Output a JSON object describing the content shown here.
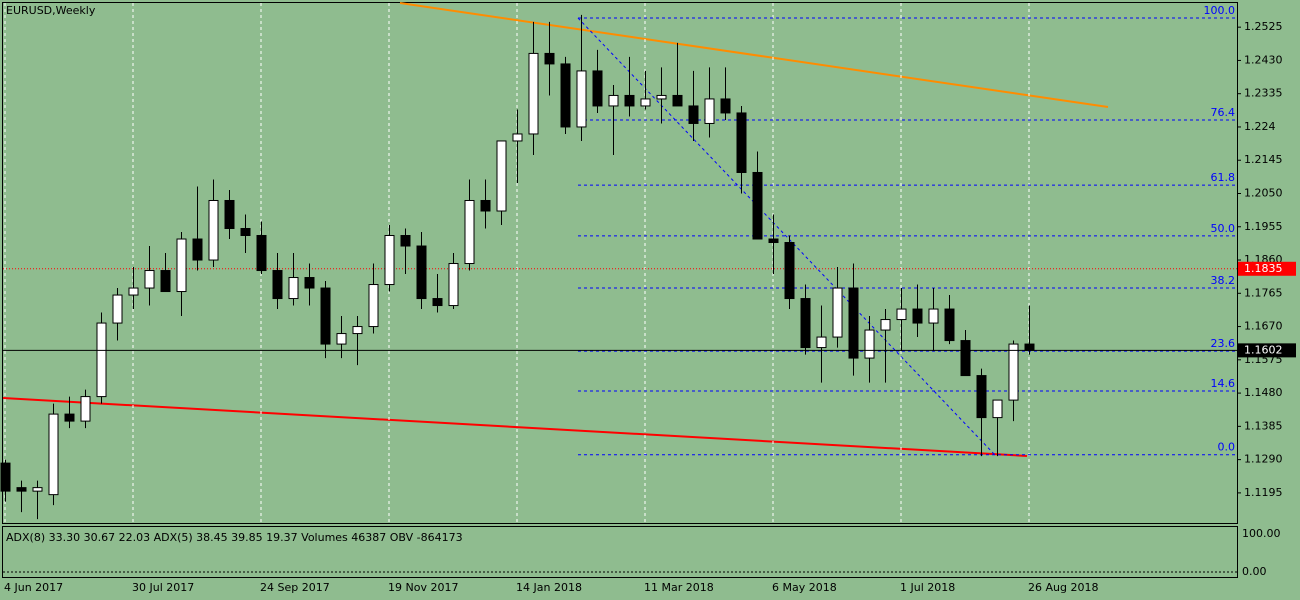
{
  "chart_data": {
    "type": "candlestick",
    "title": "EURUSD,Weekly",
    "ylim": [
      1.1109,
      1.2594
    ],
    "yticks": [
      1.2525,
      {
        "value": 1.243,
        "label": "1.2430"
      },
      1.2335,
      1.224,
      1.2145,
      {
        "value": 1.205,
        "label": "1.2050"
      },
      1.1955,
      {
        "value": 1.186,
        "label": "1.1860"
      },
      1.1765,
      {
        "value": 1.167,
        "label": "1.1670"
      },
      1.1575,
      {
        "value": 1.148,
        "label": "1.1480"
      },
      1.1385,
      {
        "value": 1.129,
        "label": "1.1290"
      },
      1.1195
    ],
    "categories": [
      "4 Jun 2017",
      null,
      null,
      null,
      null,
      null,
      null,
      null,
      "30 Jul 2017",
      null,
      null,
      null,
      null,
      null,
      null,
      null,
      "24 Sep 2017",
      null,
      null,
      null,
      null,
      null,
      null,
      null,
      "19 Nov 2017",
      null,
      null,
      null,
      null,
      null,
      null,
      null,
      "14 Jan 2018",
      null,
      null,
      null,
      null,
      null,
      null,
      null,
      "11 Mar 2018",
      null,
      null,
      null,
      null,
      null,
      null,
      null,
      "6 May 2018",
      null,
      null,
      null,
      null,
      null,
      null,
      null,
      "1 Jul 2018",
      null,
      null,
      null,
      null,
      null,
      null,
      null,
      "26 Aug 2018"
    ],
    "ohlc": [
      [
        1.128,
        1.129,
        1.117,
        1.12
      ],
      [
        1.121,
        1.123,
        1.114,
        1.12
      ],
      [
        1.12,
        1.123,
        1.112,
        1.121
      ],
      [
        1.119,
        1.145,
        1.116,
        1.142
      ],
      [
        1.142,
        1.147,
        1.138,
        1.14
      ],
      [
        1.14,
        1.149,
        1.138,
        1.147
      ],
      [
        1.147,
        1.171,
        1.145,
        1.168
      ],
      [
        1.168,
        1.178,
        1.163,
        1.176
      ],
      [
        1.176,
        1.184,
        1.172,
        1.178
      ],
      [
        1.178,
        1.19,
        1.173,
        1.183
      ],
      [
        1.183,
        1.188,
        1.177,
        1.177
      ],
      [
        1.177,
        1.194,
        1.17,
        1.192
      ],
      [
        1.192,
        1.207,
        1.183,
        1.186
      ],
      [
        1.186,
        1.209,
        1.184,
        1.203
      ],
      [
        1.203,
        1.206,
        1.192,
        1.195
      ],
      [
        1.195,
        1.199,
        1.188,
        1.193
      ],
      [
        1.193,
        1.197,
        1.182,
        1.183
      ],
      [
        1.183,
        1.188,
        1.172,
        1.175
      ],
      [
        1.175,
        1.188,
        1.173,
        1.181
      ],
      [
        1.181,
        1.185,
        1.173,
        1.178
      ],
      [
        1.178,
        1.18,
        1.158,
        1.162
      ],
      [
        1.162,
        1.17,
        1.158,
        1.165
      ],
      [
        1.165,
        1.17,
        1.156,
        1.167
      ],
      [
        1.167,
        1.185,
        1.165,
        1.179
      ],
      [
        1.179,
        1.196,
        1.177,
        1.193
      ],
      [
        1.193,
        1.195,
        1.182,
        1.19
      ],
      [
        1.19,
        1.194,
        1.172,
        1.175
      ],
      [
        1.175,
        1.182,
        1.171,
        1.173
      ],
      [
        1.173,
        1.188,
        1.172,
        1.185
      ],
      [
        1.185,
        1.209,
        1.183,
        1.203
      ],
      [
        1.203,
        1.209,
        1.195,
        1.2
      ],
      [
        1.2,
        1.22,
        1.196,
        1.22
      ],
      [
        1.22,
        1.229,
        1.208,
        1.222
      ],
      [
        1.222,
        1.254,
        1.216,
        1.245
      ],
      [
        1.245,
        1.254,
        1.233,
        1.242
      ],
      [
        1.242,
        1.244,
        1.222,
        1.224
      ],
      [
        1.224,
        1.256,
        1.22,
        1.24
      ],
      [
        1.24,
        1.246,
        1.228,
        1.23
      ],
      [
        1.23,
        1.236,
        1.216,
        1.233
      ],
      [
        1.233,
        1.244,
        1.227,
        1.23
      ],
      [
        1.23,
        1.24,
        1.229,
        1.232
      ],
      [
        1.232,
        1.241,
        1.225,
        1.233
      ],
      [
        1.233,
        1.248,
        1.23,
        1.23
      ],
      [
        1.23,
        1.24,
        1.22,
        1.225
      ],
      [
        1.225,
        1.241,
        1.221,
        1.232
      ],
      [
        1.232,
        1.241,
        1.226,
        1.228
      ],
      [
        1.228,
        1.23,
        1.205,
        1.211
      ],
      [
        1.211,
        1.217,
        1.192,
        1.192
      ],
      [
        1.192,
        1.199,
        1.182,
        1.191
      ],
      [
        1.191,
        1.193,
        1.172,
        1.175
      ],
      [
        1.175,
        1.179,
        1.159,
        1.161
      ],
      [
        1.161,
        1.173,
        1.151,
        1.164
      ],
      [
        1.164,
        1.184,
        1.161,
        1.178
      ],
      [
        1.178,
        1.185,
        1.153,
        1.158
      ],
      [
        1.158,
        1.17,
        1.151,
        1.166
      ],
      [
        1.166,
        1.172,
        1.151,
        1.169
      ],
      [
        1.169,
        1.178,
        1.16,
        1.172
      ],
      [
        1.172,
        1.179,
        1.164,
        1.168
      ],
      [
        1.168,
        1.178,
        1.16,
        1.172
      ],
      [
        1.172,
        1.176,
        1.162,
        1.163
      ],
      [
        1.163,
        1.166,
        1.153,
        1.153
      ],
      [
        1.153,
        1.155,
        1.13,
        1.141
      ],
      [
        1.141,
        1.146,
        1.13,
        1.146
      ],
      [
        1.146,
        1.163,
        1.14,
        1.162
      ],
      [
        1.162,
        1.173,
        1.159,
        1.1602
      ]
    ],
    "fib_levels": [
      {
        "label": "100.0",
        "price": 1.2551
      },
      {
        "label": "76.4",
        "price": 1.226
      },
      {
        "label": "61.8",
        "price": 1.2074
      },
      {
        "label": "50.0",
        "price": 1.1929
      },
      {
        "label": "38.2",
        "price": 1.178
      },
      {
        "label": "23.6",
        "price": 1.16
      },
      {
        "label": "14.6",
        "price": 1.1486
      },
      {
        "label": "0.0",
        "price": 1.1304
      }
    ],
    "ask_line": 1.1835,
    "price_line": 1.1602,
    "indicator": {
      "text": "ADX(8) 33.30 30.67 22.03 ADX(5) 38.45 39.85 19.37 Volumes 46387 OBV -864173",
      "top_label": "100.00",
      "bottom_label": "0.00"
    }
  }
}
